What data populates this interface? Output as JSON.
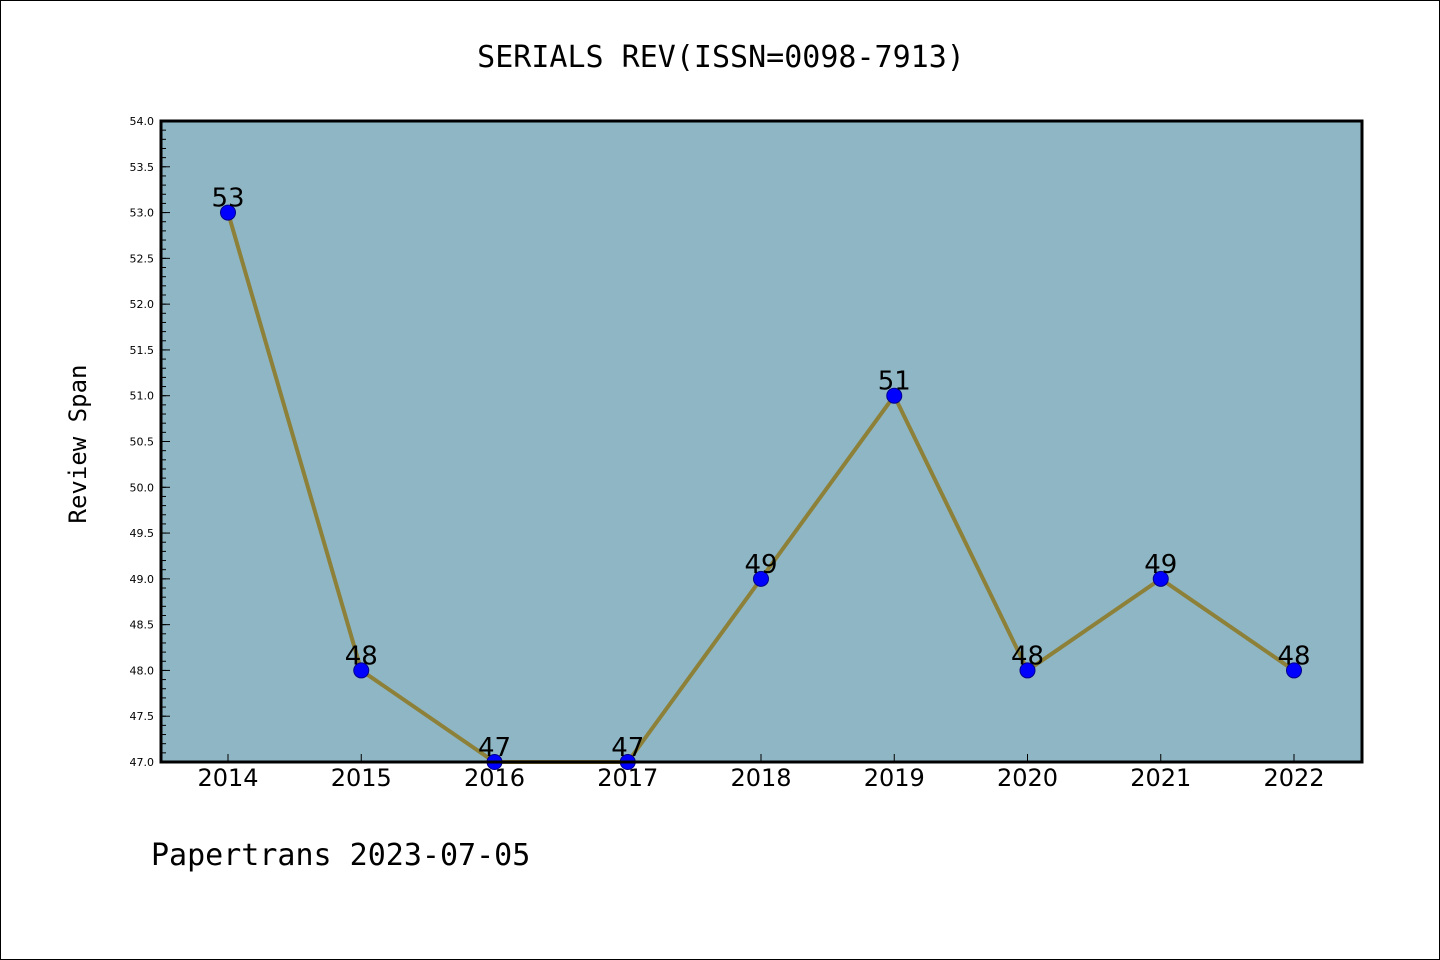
{
  "chart_data": {
    "type": "line",
    "title": "SERIALS REV(ISSN=0098-7913)",
    "xlabel": "",
    "ylabel": "Review Span",
    "x": [
      "2014",
      "2015",
      "2016",
      "2017",
      "2018",
      "2019",
      "2020",
      "2021",
      "2022"
    ],
    "series": [
      {
        "values": [
          53,
          48,
          47,
          47,
          49,
          51,
          48,
          49,
          48
        ]
      }
    ],
    "data_labels": [
      "53",
      "48",
      "47",
      "47",
      "49",
      "51",
      "48",
      "49",
      "48"
    ],
    "ylim": [
      47.0,
      54.0
    ],
    "yticks": [
      "47.0",
      "47.5",
      "48.0",
      "48.5",
      "49.0",
      "49.5",
      "50.0",
      "50.5",
      "51.0",
      "51.5",
      "52.0",
      "52.5",
      "53.0",
      "53.5",
      "54.0"
    ],
    "grid": false,
    "legend": "none",
    "colors": {
      "plot_background": "#8fb6c4",
      "line": "#8d8038",
      "marker": "#0000ff",
      "marker_edge": "#00008b"
    }
  },
  "footer": "Papertrans 2023-07-05"
}
